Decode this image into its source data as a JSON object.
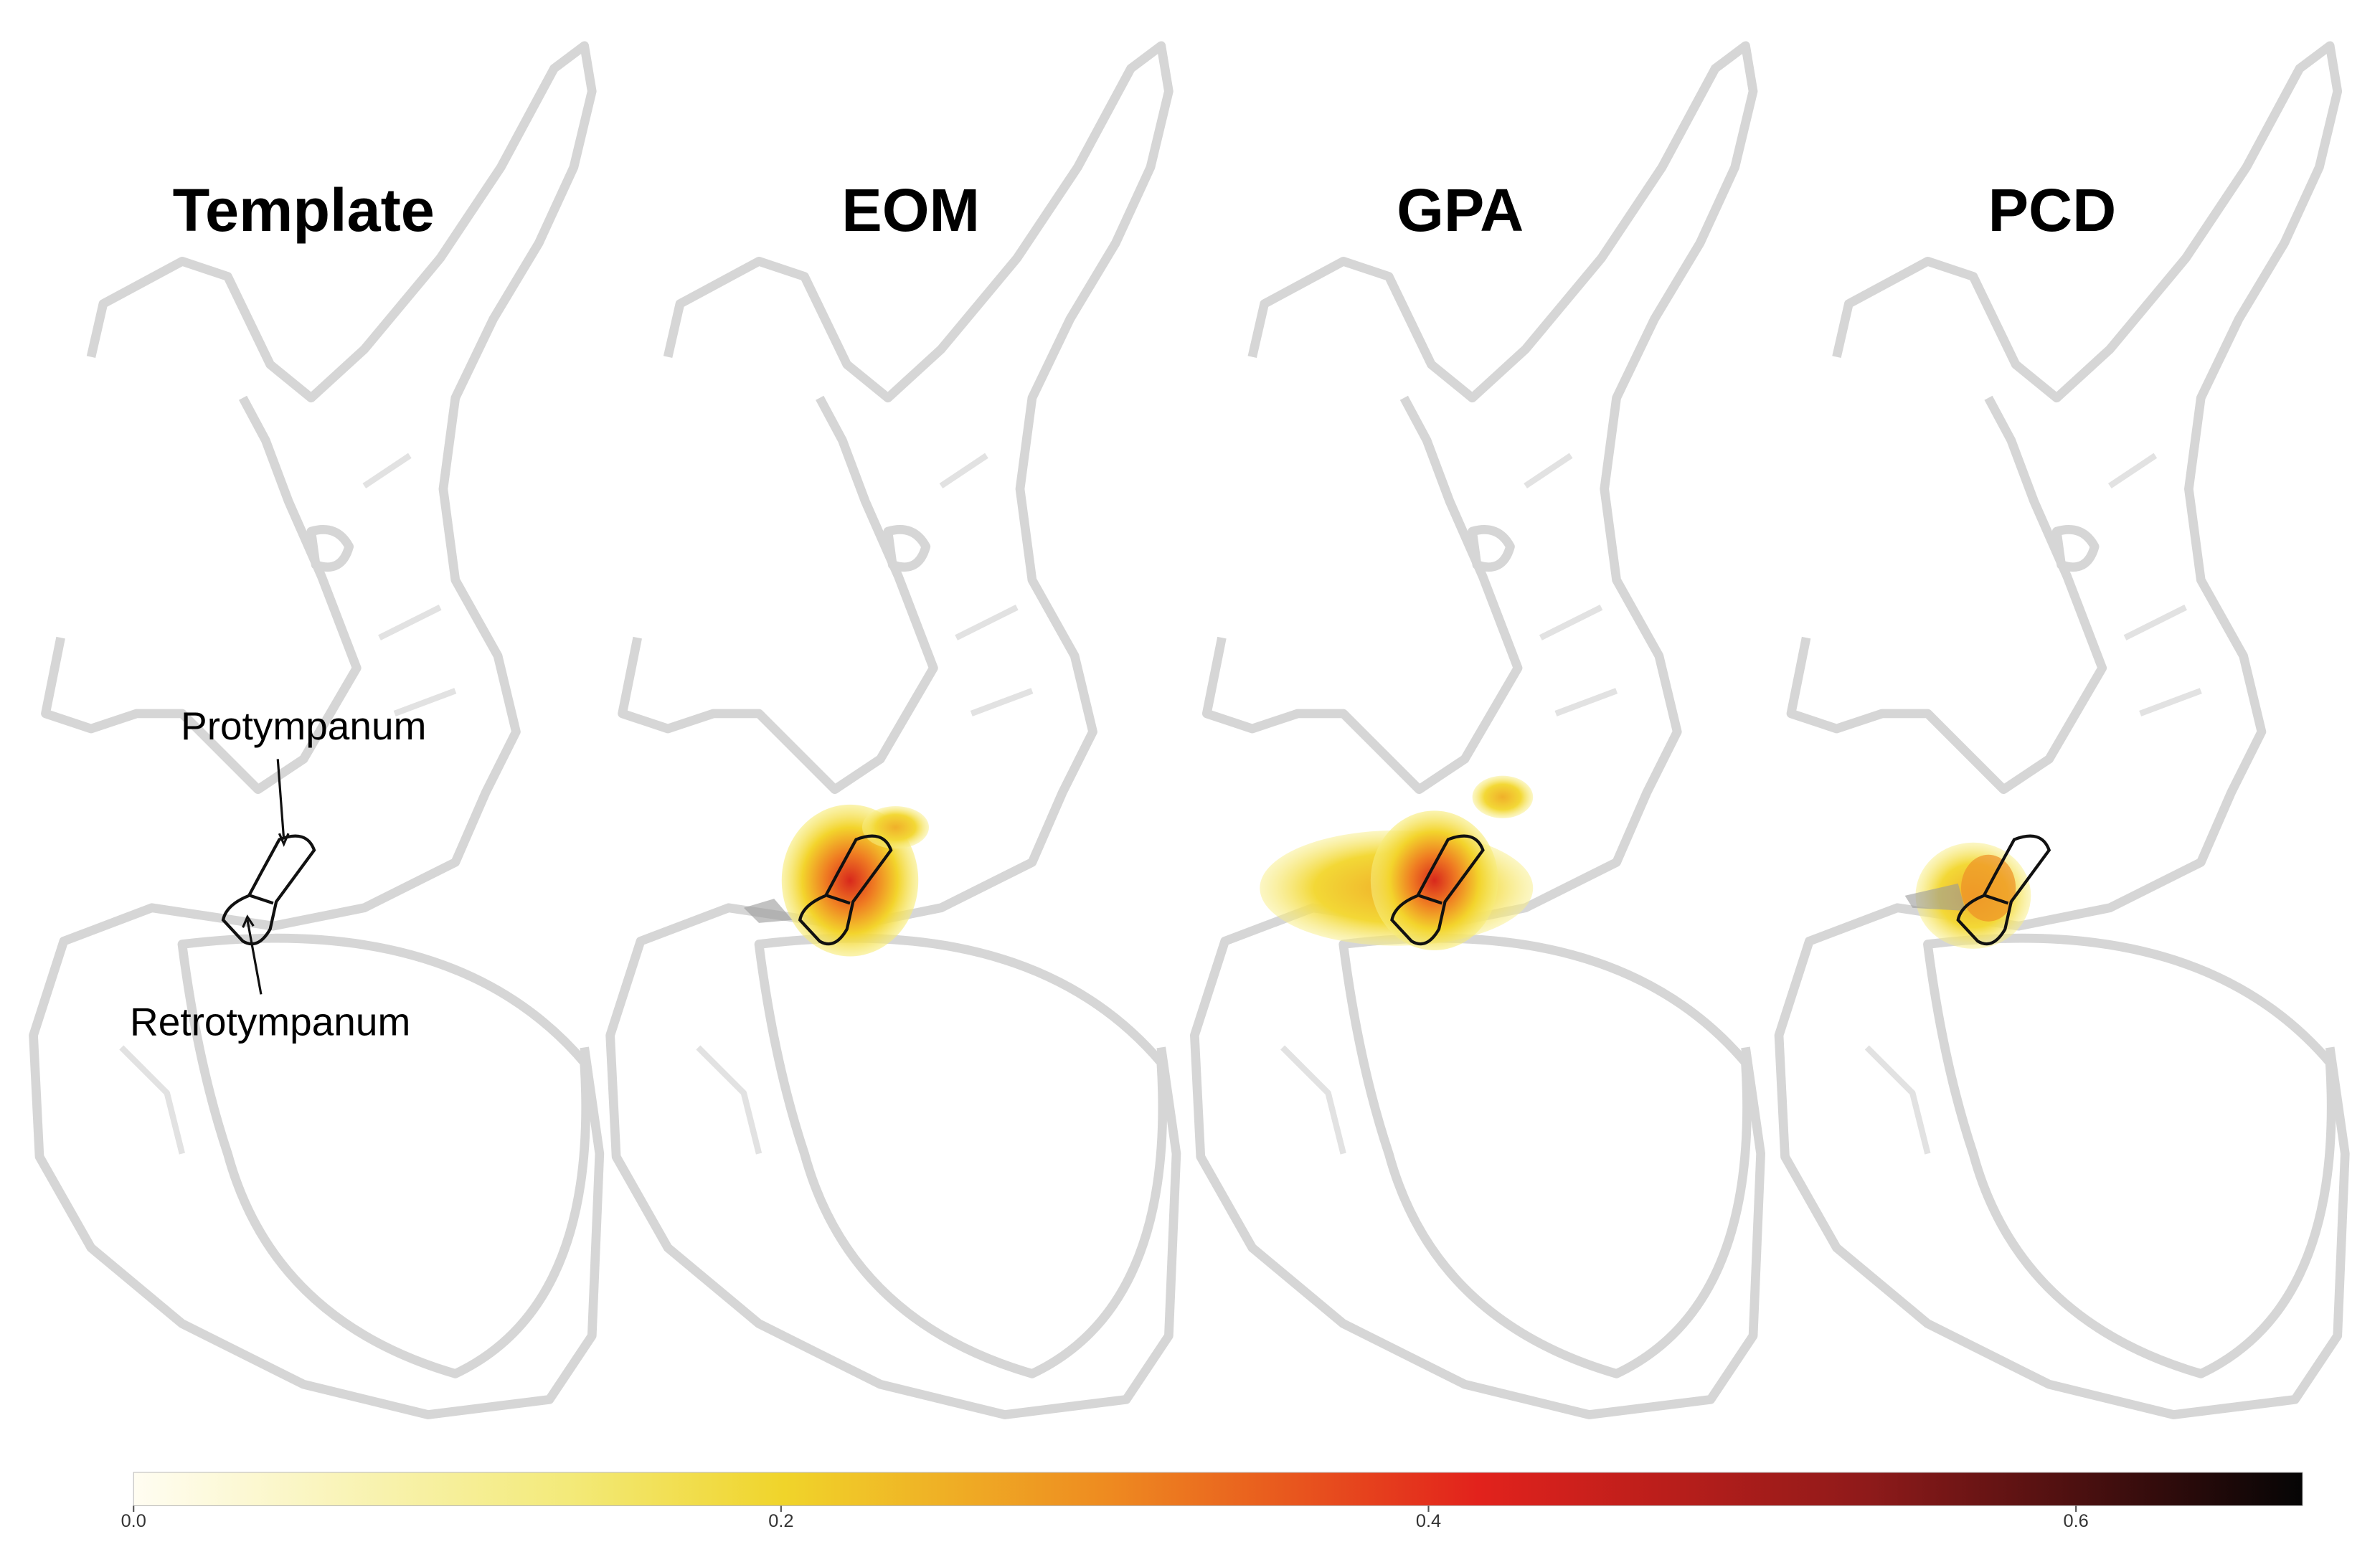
{
  "panels": [
    {
      "title": "Template"
    },
    {
      "title": "EOM"
    },
    {
      "title": "GPA"
    },
    {
      "title": "PCD"
    }
  ],
  "annotations": {
    "protympanum": "Protympanum",
    "retrotympanum": "Retrotympanum"
  },
  "colorbar": {
    "range": [
      0,
      0.67
    ],
    "ticks": [
      {
        "value": 0,
        "label": "0.0"
      },
      {
        "value": 0.2,
        "label": "0.2"
      },
      {
        "value": 0.4,
        "label": "0.4"
      },
      {
        "value": 0.6,
        "label": "0.6"
      }
    ]
  }
}
